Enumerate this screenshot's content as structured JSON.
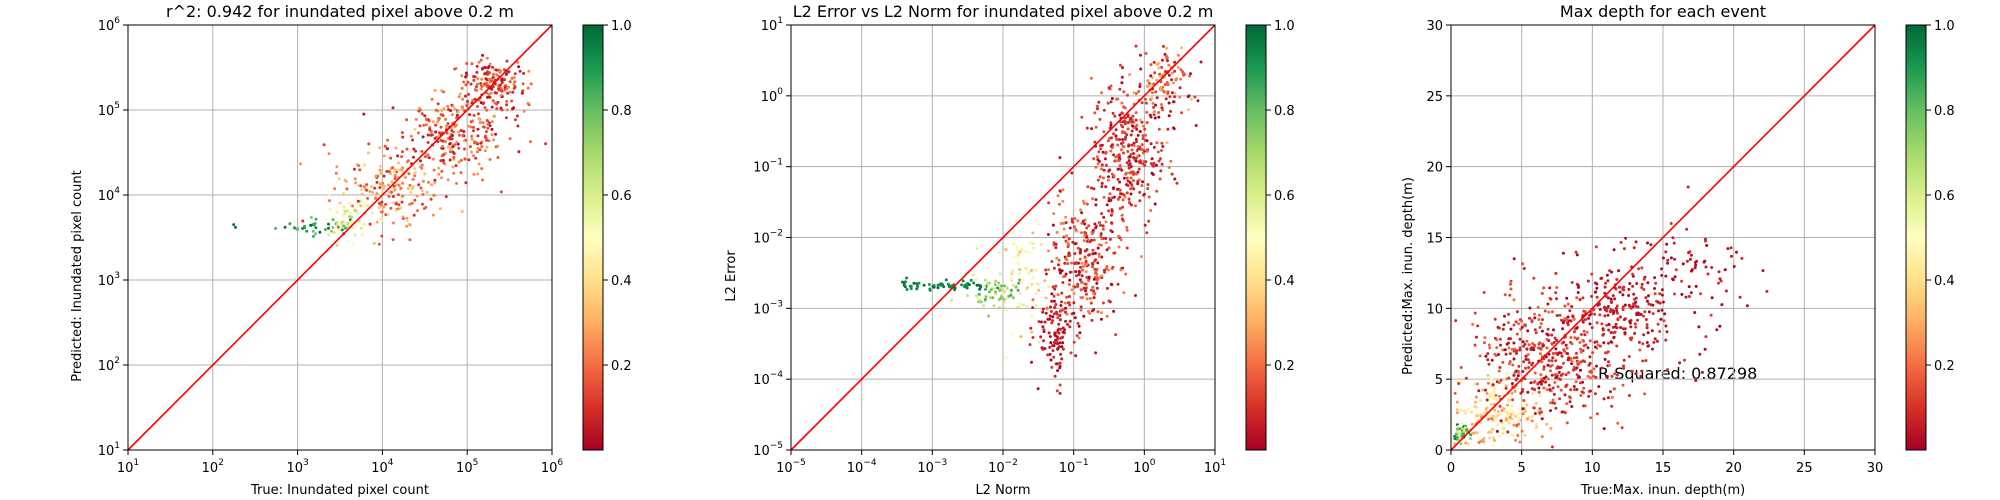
{
  "colormap": {
    "name": "RdYlGn",
    "stops": [
      "#a50026",
      "#d73027",
      "#f46d43",
      "#fdae61",
      "#fee08b",
      "#ffffbf",
      "#d9ef8b",
      "#a6d96a",
      "#66bd63",
      "#1a9850",
      "#006837"
    ]
  },
  "identity_line_color": "#ff0000",
  "chart_data": [
    {
      "type": "scatter",
      "title": "r^2: 0.942 for inundated pixel above 0.2 m",
      "xlabel": "True: Inundated pixel count",
      "ylabel": "Predicted: Inundated pixel count",
      "xscale": "log",
      "yscale": "log",
      "xlim": [
        10,
        1000000
      ],
      "ylim": [
        10,
        1000000
      ],
      "grid": true,
      "identity_line": true,
      "xticks": [
        {
          "base": "10",
          "exp": "1"
        },
        {
          "base": "10",
          "exp": "2"
        },
        {
          "base": "10",
          "exp": "3"
        },
        {
          "base": "10",
          "exp": "4"
        },
        {
          "base": "10",
          "exp": "5"
        },
        {
          "base": "10",
          "exp": "6"
        }
      ],
      "yticks": [
        {
          "base": "10",
          "exp": "1"
        },
        {
          "base": "10",
          "exp": "2"
        },
        {
          "base": "10",
          "exp": "3"
        },
        {
          "base": "10",
          "exp": "4"
        },
        {
          "base": "10",
          "exp": "5"
        },
        {
          "base": "10",
          "exp": "6"
        }
      ],
      "colorbar": {
        "range": [
          0,
          1
        ],
        "ticks": [
          "0.2",
          "0.4",
          "0.6",
          "0.8",
          "1.0"
        ]
      },
      "clusters": [
        {
          "x": 180,
          "y": 4200,
          "spread_x": 0.03,
          "spread_y": 0.03,
          "n": 2,
          "c": [
            0.95,
            0.97
          ]
        },
        {
          "x": 1800,
          "y": 4300,
          "spread_x": 0.25,
          "spread_y": 0.05,
          "n": 40,
          "c": [
            0.75,
            1.0
          ]
        },
        {
          "x": 4000,
          "y": 5000,
          "spread_x": 0.15,
          "spread_y": 0.12,
          "n": 60,
          "c": [
            0.35,
            0.7
          ]
        },
        {
          "x": 12000,
          "y": 12000,
          "spread_x": 0.3,
          "spread_y": 0.25,
          "n": 180,
          "c": [
            0.08,
            0.4
          ]
        },
        {
          "x": 60000,
          "y": 50000,
          "spread_x": 0.35,
          "spread_y": 0.25,
          "n": 260,
          "c": [
            0.02,
            0.3
          ]
        },
        {
          "x": 200000,
          "y": 200000,
          "spread_x": 0.2,
          "spread_y": 0.15,
          "n": 180,
          "c": [
            0.02,
            0.25
          ]
        }
      ]
    },
    {
      "type": "scatter",
      "title": "L2 Error vs L2 Norm for inundated pixel above 0.2 m",
      "xlabel": "L2 Norm",
      "ylabel": "L2 Error",
      "xscale": "log",
      "yscale": "log",
      "xlim": [
        1e-05,
        10
      ],
      "ylim": [
        1e-05,
        10
      ],
      "grid": true,
      "identity_line": true,
      "xticks": [
        {
          "base": "10",
          "exp": "−5"
        },
        {
          "base": "10",
          "exp": "−4"
        },
        {
          "base": "10",
          "exp": "−3"
        },
        {
          "base": "10",
          "exp": "−2"
        },
        {
          "base": "10",
          "exp": "−1"
        },
        {
          "base": "10",
          "exp": "0"
        },
        {
          "base": "10",
          "exp": "1"
        }
      ],
      "yticks": [
        {
          "base": "10",
          "exp": "−5"
        },
        {
          "base": "10",
          "exp": "−4"
        },
        {
          "base": "10",
          "exp": "−3"
        },
        {
          "base": "10",
          "exp": "−2"
        },
        {
          "base": "10",
          "exp": "−1"
        },
        {
          "base": "10",
          "exp": "0"
        },
        {
          "base": "10",
          "exp": "1"
        }
      ],
      "colorbar": {
        "range": [
          0,
          1
        ],
        "ticks": [
          "0.2",
          "0.4",
          "0.6",
          "0.8",
          "1.0"
        ]
      },
      "clusters": [
        {
          "x": 0.0015,
          "y": 0.0021,
          "spread_x": 0.35,
          "spread_y": 0.03,
          "n": 70,
          "c": [
            0.9,
            1.0
          ]
        },
        {
          "x": 0.008,
          "y": 0.0016,
          "spread_x": 0.2,
          "spread_y": 0.12,
          "n": 60,
          "c": [
            0.55,
            0.85
          ]
        },
        {
          "x": 0.02,
          "y": 0.003,
          "spread_x": 0.2,
          "spread_y": 0.4,
          "n": 70,
          "c": [
            0.3,
            0.6
          ]
        },
        {
          "x": 0.06,
          "y": 0.0005,
          "spread_x": 0.15,
          "spread_y": 0.35,
          "n": 120,
          "c": [
            0.0,
            0.12
          ]
        },
        {
          "x": 0.15,
          "y": 0.005,
          "spread_x": 0.25,
          "spread_y": 0.5,
          "n": 300,
          "c": [
            0.0,
            0.25
          ]
        },
        {
          "x": 0.6,
          "y": 0.15,
          "spread_x": 0.25,
          "spread_y": 0.5,
          "n": 320,
          "c": [
            0.0,
            0.2
          ]
        },
        {
          "x": 2.0,
          "y": 1.5,
          "spread_x": 0.2,
          "spread_y": 0.3,
          "n": 120,
          "c": [
            0.0,
            0.35
          ]
        }
      ]
    },
    {
      "type": "scatter",
      "title": "Max depth for each event",
      "xlabel": "True:Max. inun. depth(m)",
      "ylabel": "Predicted:Max. inun. depth(m)",
      "xscale": "linear",
      "yscale": "linear",
      "xlim": [
        0,
        30
      ],
      "ylim": [
        0,
        30
      ],
      "grid": true,
      "identity_line": true,
      "xticks": [
        "0",
        "5",
        "10",
        "15",
        "20",
        "25",
        "30"
      ],
      "yticks": [
        "0",
        "5",
        "10",
        "15",
        "20",
        "25",
        "30"
      ],
      "annotation": {
        "text": "R Squared: 0.87298",
        "x": 10,
        "y": 5
      },
      "colorbar": {
        "range": [
          0,
          1
        ],
        "ticks": [
          "0.2",
          "0.4",
          "0.6",
          "0.8",
          "1.0"
        ]
      },
      "clusters": [
        {
          "x": 0.7,
          "y": 1.2,
          "spread_x": 0.4,
          "spread_y": 0.4,
          "n": 40,
          "c": [
            0.6,
            1.0
          ]
        },
        {
          "x": 3.5,
          "y": 2.5,
          "spread_x": 1.5,
          "spread_y": 1.2,
          "n": 200,
          "c": [
            0.2,
            0.55
          ]
        },
        {
          "x": 7,
          "y": 6.5,
          "spread_x": 2.5,
          "spread_y": 2.2,
          "n": 450,
          "c": [
            0.0,
            0.2
          ]
        },
        {
          "x": 12,
          "y": 10,
          "spread_x": 2.5,
          "spread_y": 2.0,
          "n": 260,
          "c": [
            0.0,
            0.12
          ]
        },
        {
          "x": 17,
          "y": 12.5,
          "spread_x": 2.2,
          "spread_y": 1.8,
          "n": 60,
          "c": [
            0.0,
            0.1
          ]
        }
      ]
    }
  ]
}
